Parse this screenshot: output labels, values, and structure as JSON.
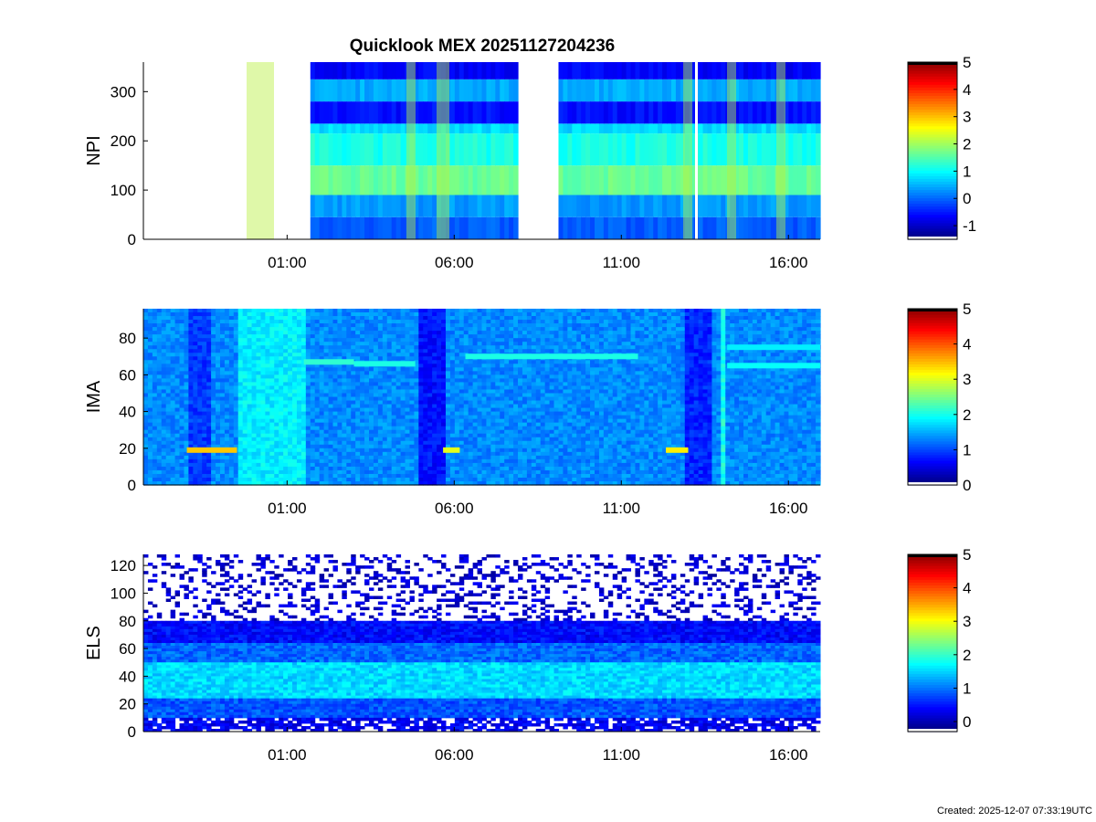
{
  "title": "Quicklook MEX 20251127204236",
  "footer": "Created: 2025-12-07 07:33:19UTC",
  "chart_data": [
    {
      "type": "heatmap",
      "id": "npi",
      "ylabel": "NPI",
      "ylim": [
        0,
        360
      ],
      "yticks": [
        0,
        100,
        200,
        300
      ],
      "xlim": [
        "2025-11-27T20:42",
        "2025-11-28T16:57"
      ],
      "xticks": [
        "01:00",
        "06:00",
        "11:00",
        "16:00"
      ],
      "data_gaps": [
        [
          "2025-11-27T20:42",
          "2025-11-28T01:45"
        ],
        [
          "2025-11-28T07:52",
          "2025-11-28T09:10"
        ]
      ],
      "bands": [
        {
          "y": [
            0,
            45
          ],
          "value": -0.1
        },
        {
          "y": [
            45,
            90
          ],
          "value": 0.3
        },
        {
          "y": [
            90,
            150
          ],
          "value": 1.6
        },
        {
          "y": [
            150,
            215
          ],
          "value": 1.1
        },
        {
          "y": [
            215,
            235
          ],
          "value": 0.7
        },
        {
          "y": [
            235,
            280
          ],
          "value": -0.6
        },
        {
          "y": [
            280,
            325
          ],
          "value": 0.4
        },
        {
          "y": [
            325,
            360
          ],
          "value": -0.7
        }
      ],
      "colorbar": {
        "range": [
          -1.5,
          5
        ],
        "ticks": [
          -1,
          0,
          1,
          2,
          3,
          4,
          5
        ]
      }
    },
    {
      "type": "heatmap",
      "id": "ima",
      "ylabel": "IMA",
      "ylim": [
        0,
        96
      ],
      "yticks": [
        0,
        20,
        40,
        60,
        80
      ],
      "xlim": [
        "2025-11-27T20:42",
        "2025-11-28T16:57"
      ],
      "xticks": [
        "01:00",
        "06:00",
        "11:00",
        "16:00"
      ],
      "background_value": 1.3,
      "features": [
        {
          "kind": "low_column",
          "t": [
            "2025-11-27T22:02",
            "2025-11-27T22:40"
          ],
          "value": 0.9
        },
        {
          "kind": "high_column",
          "t": [
            "2025-11-27T23:30",
            "2025-11-28T01:30"
          ],
          "value": 1.8
        },
        {
          "kind": "low_column",
          "t": [
            "2025-11-28T05:00",
            "2025-11-28T05:42"
          ],
          "value": 0.7
        },
        {
          "kind": "low_column",
          "t": [
            "2025-11-28T12:50",
            "2025-11-28T13:40"
          ],
          "value": 0.8
        },
        {
          "kind": "high_column",
          "t": [
            "2025-11-28T13:55",
            "2025-11-28T14:08"
          ],
          "value": 2.0
        },
        {
          "kind": "line",
          "t": [
            "2025-11-27T22:00",
            "2025-11-27T23:30"
          ],
          "y": 19,
          "value": 3.4
        },
        {
          "kind": "line",
          "t": [
            "2025-11-28T05:40",
            "2025-11-28T06:10"
          ],
          "y": 19,
          "value": 3.0
        },
        {
          "kind": "line",
          "t": [
            "2025-11-28T12:20",
            "2025-11-28T13:00"
          ],
          "y": 19,
          "value": 3.2
        },
        {
          "kind": "line",
          "t": [
            "2025-11-28T01:30",
            "2025-11-28T03:00"
          ],
          "y": 67,
          "value": 2.1
        },
        {
          "kind": "line",
          "t": [
            "2025-11-28T03:00",
            "2025-11-28T04:50"
          ],
          "y": 66,
          "value": 2.0
        },
        {
          "kind": "line",
          "t": [
            "2025-11-28T06:20",
            "2025-11-28T11:30"
          ],
          "y": 70,
          "value": 2.0
        },
        {
          "kind": "line",
          "t": [
            "2025-11-28T14:10",
            "2025-11-28T16:57"
          ],
          "y": 65,
          "value": 1.9
        },
        {
          "kind": "line",
          "t": [
            "2025-11-28T14:10",
            "2025-11-28T16:57"
          ],
          "y": 75,
          "value": 1.8
        }
      ],
      "colorbar": {
        "range": [
          0,
          5
        ],
        "ticks": [
          0,
          1,
          2,
          3,
          4,
          5
        ]
      }
    },
    {
      "type": "heatmap",
      "id": "els",
      "ylabel": "ELS",
      "ylim": [
        0,
        128
      ],
      "yticks": [
        0,
        20,
        40,
        60,
        80,
        100,
        120
      ],
      "xlim": [
        "2025-11-27T20:42",
        "2025-11-28T16:57"
      ],
      "xticks": [
        "01:00",
        "06:00",
        "11:00",
        "16:00"
      ],
      "profile": [
        {
          "y": [
            0,
            10
          ],
          "value": 0.3
        },
        {
          "y": [
            10,
            25
          ],
          "value": 0.8
        },
        {
          "y": [
            25,
            50
          ],
          "value": 1.5
        },
        {
          "y": [
            50,
            65
          ],
          "value": 0.9
        },
        {
          "y": [
            65,
            80
          ],
          "value": 0.4
        },
        {
          "y": [
            80,
            128
          ],
          "value": 0.1
        }
      ],
      "colorbar": {
        "range": [
          -0.3,
          5
        ],
        "ticks": [
          0,
          1,
          2,
          3,
          4,
          5
        ]
      }
    }
  ]
}
